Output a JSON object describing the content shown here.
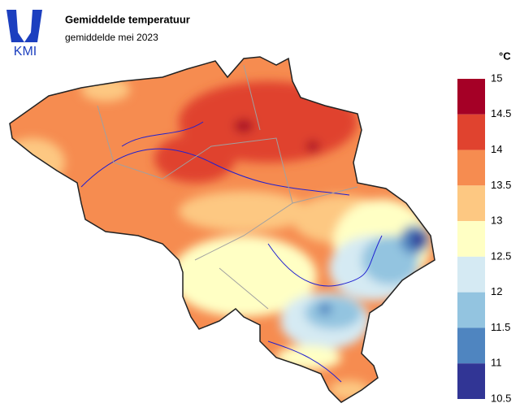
{
  "header": {
    "logo": "KMI",
    "title": "Gemiddelde temperatuur",
    "subtitle": "gemiddelde mei 2023"
  },
  "legend": {
    "unit": "°C",
    "ticks": [
      15,
      14.5,
      14,
      13.5,
      13,
      12.5,
      12,
      11.5,
      11,
      10.5
    ],
    "colors": [
      "#a50026",
      "#e0432f",
      "#f68c50",
      "#fdc882",
      "#ffffc4",
      "#d5eaf3",
      "#93c4e0",
      "#4f85c0",
      "#313595"
    ]
  }
}
